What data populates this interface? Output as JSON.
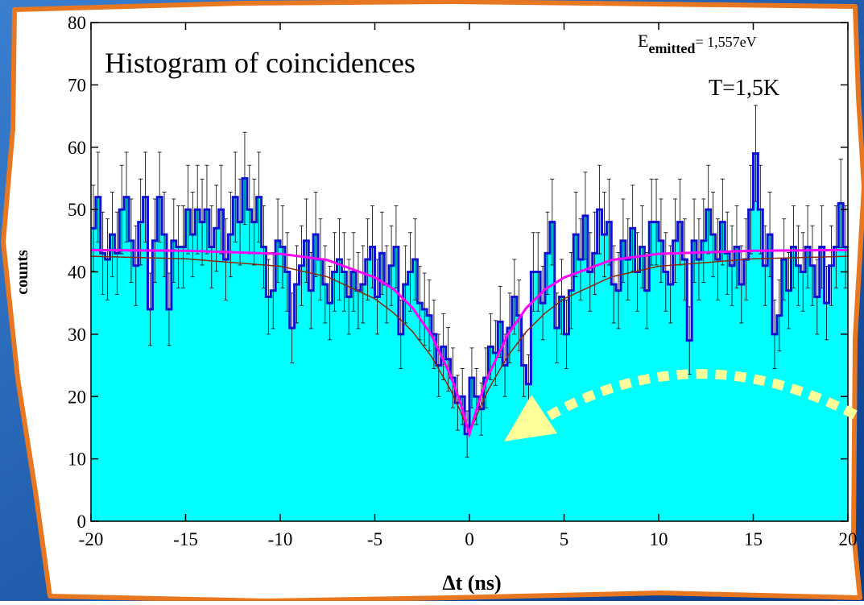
{
  "chart_data": {
    "type": "histogram",
    "title": "Histogram of coincidences",
    "energy_label": {
      "symbol": "E",
      "subscript": "emitted",
      "value": "= 1,557eV"
    },
    "temperature_label": "T=1,5K",
    "xlabel": "Δt (ns)",
    "ylabel": "counts",
    "xlim": [
      -20,
      20
    ],
    "ylim": [
      0,
      80
    ],
    "xticks": [
      -20,
      -15,
      -10,
      -5,
      0,
      5,
      10,
      15,
      20
    ],
    "yticks": [
      0,
      10,
      20,
      30,
      40,
      50,
      60,
      70,
      80
    ],
    "fill_color": "#00ffff",
    "edge_color": "#1010d0",
    "bins": [
      -20,
      -19.75,
      -19.5,
      -19.25,
      -19,
      -18.75,
      -18.5,
      -18.25,
      -18,
      -17.75,
      -17.5,
      -17.25,
      -17,
      -16.75,
      -16.5,
      -16.25,
      -16,
      -15.75,
      -15.5,
      -15.25,
      -15,
      -14.75,
      -14.5,
      -14.25,
      -14,
      -13.75,
      -13.5,
      -13.25,
      -13,
      -12.75,
      -12.5,
      -12.25,
      -12,
      -11.75,
      -11.5,
      -11.25,
      -11,
      -10.75,
      -10.5,
      -10.25,
      -10,
      -9.75,
      -9.5,
      -9.25,
      -9,
      -8.75,
      -8.5,
      -8.25,
      -8,
      -7.75,
      -7.5,
      -7.25,
      -7,
      -6.75,
      -6.5,
      -6.25,
      -6,
      -5.75,
      -5.5,
      -5.25,
      -5,
      -4.75,
      -4.5,
      -4.25,
      -4,
      -3.75,
      -3.5,
      -3.25,
      -3,
      -2.75,
      -2.5,
      -2.25,
      -2,
      -1.75,
      -1.5,
      -1.25,
      -1,
      -0.75,
      -0.5,
      -0.25,
      0,
      0.25,
      0.5,
      0.75,
      1,
      1.25,
      1.5,
      1.75,
      2,
      2.25,
      2.5,
      2.75,
      3,
      3.25,
      3.5,
      3.75,
      4,
      4.25,
      4.5,
      4.75,
      5,
      5.25,
      5.5,
      5.75,
      6,
      6.25,
      6.5,
      6.75,
      7,
      7.25,
      7.5,
      7.75,
      8,
      8.25,
      8.5,
      8.75,
      9,
      9.25,
      9.5,
      9.75,
      10,
      10.25,
      10.5,
      10.75,
      11,
      11.25,
      11.5,
      11.75,
      12,
      12.25,
      12.5,
      12.75,
      13,
      13.25,
      13.5,
      13.75,
      14,
      14.25,
      14.5,
      14.75,
      15,
      15.25,
      15.5,
      15.75,
      16,
      16.25,
      16.5,
      16.75,
      17,
      17.25,
      17.5,
      17.75,
      18,
      18.25,
      18.5,
      18.75,
      19,
      19.25,
      19.5,
      19.75,
      20
    ],
    "values": [
      47,
      52,
      43,
      42,
      46,
      43,
      50,
      52,
      45,
      41,
      48,
      52,
      34,
      45,
      52,
      46,
      34,
      45,
      44,
      44,
      50,
      46,
      50,
      48,
      50,
      44,
      47,
      50,
      42,
      46,
      52,
      48,
      55,
      50,
      48,
      52,
      44,
      36,
      37,
      45,
      44,
      40,
      31,
      38,
      41,
      45,
      37,
      46,
      42,
      38,
      35,
      40,
      42,
      40,
      36,
      40,
      37,
      38,
      42,
      44,
      36,
      43,
      38,
      41,
      44,
      30,
      38,
      40,
      42,
      35,
      34,
      33,
      30,
      25,
      28,
      26,
      23,
      19,
      20,
      14,
      23,
      20,
      18,
      23,
      28,
      27,
      32,
      25,
      31,
      36,
      33,
      25,
      22,
      40,
      40,
      35,
      43,
      48,
      31,
      36,
      30,
      37,
      46,
      42,
      49,
      40,
      43,
      50,
      46,
      48,
      38,
      37,
      45,
      42,
      47,
      40,
      44,
      37,
      48,
      48,
      45,
      40,
      38,
      45,
      48,
      42,
      29,
      45,
      42,
      45,
      50,
      46,
      42,
      48,
      43,
      41,
      44,
      38,
      42,
      50,
      59,
      50,
      41,
      46,
      30,
      33,
      42,
      37,
      44,
      41,
      40,
      44,
      41,
      36,
      44,
      35,
      41,
      44,
      51,
      44
    ],
    "errors": [
      6.9,
      7.2,
      6.6,
      6.5,
      6.8,
      6.6,
      7.1,
      7.2,
      6.7,
      6.4,
      6.9,
      7.2,
      5.8,
      6.7,
      7.2,
      6.8,
      5.8,
      6.7,
      6.6,
      6.6,
      7.1,
      6.8,
      7.1,
      6.9,
      7.1,
      6.6,
      6.9,
      7.1,
      6.5,
      6.8,
      7.2,
      6.9,
      7.4,
      7.1,
      6.9,
      7.2,
      6.6,
      6,
      6.1,
      6.7,
      6.6,
      6.3,
      5.6,
      6.2,
      6.4,
      6.7,
      6.1,
      6.8,
      6.5,
      6.2,
      5.9,
      6.3,
      6.5,
      6.3,
      6,
      6.3,
      6.1,
      6.2,
      6.5,
      6.6,
      6,
      6.6,
      6.2,
      6.4,
      6.6,
      5.5,
      6.2,
      6.3,
      6.5,
      5.9,
      5.8,
      5.7,
      5.5,
      5,
      5.3,
      5.1,
      4.8,
      4.4,
      4.5,
      3.7,
      4.8,
      4.5,
      4.2,
      4.8,
      5.3,
      5.2,
      5.7,
      5,
      5.6,
      6,
      5.7,
      5,
      4.7,
      6.3,
      6.3,
      5.9,
      6.6,
      6.9,
      5.6,
      6,
      5.5,
      6.1,
      6.8,
      6.5,
      7,
      6.3,
      6.6,
      7.1,
      6.8,
      6.9,
      6.2,
      6.1,
      6.7,
      6.5,
      6.9,
      6.3,
      6.6,
      6.1,
      6.9,
      6.9,
      6.7,
      6.3,
      6.2,
      6.7,
      6.9,
      6.5,
      5.4,
      6.7,
      6.5,
      6.7,
      7.1,
      6.8,
      6.5,
      6.9,
      6.6,
      6.4,
      6.6,
      6.2,
      6.5,
      7.1,
      7.7,
      7.1,
      6.4,
      6.8,
      5.5,
      5.7,
      6.5,
      6.1,
      6.6,
      6.4,
      6.3,
      6.6,
      6.4,
      6,
      6.6,
      5.9,
      6.4,
      6.6,
      7.1,
      6.6
    ],
    "fit_curves": [
      {
        "color": "#8b2a10",
        "x": [
          -20,
          -15,
          -10,
          -7.5,
          -5,
          -4,
          -3,
          -2,
          -1,
          -0.5,
          0,
          0.5,
          1,
          2,
          3,
          4,
          5,
          7.5,
          10,
          15,
          20
        ],
        "y": [
          42.5,
          42.1,
          40.9,
          39.2,
          35.7,
          33.4,
          30.4,
          26.4,
          21.1,
          17.8,
          14,
          17.8,
          21.1,
          26.4,
          30.4,
          33.4,
          35.7,
          39.2,
          40.9,
          42.1,
          42.5
        ]
      },
      {
        "color": "#ff00ff",
        "x": [
          -20,
          -15,
          -10,
          -7.5,
          -5,
          -4,
          -3,
          -2,
          -1,
          -0.5,
          0,
          0.5,
          1,
          2,
          3,
          4,
          5,
          7.5,
          10,
          15,
          20
        ],
        "y": [
          43.5,
          43.4,
          42.9,
          41.9,
          39.1,
          37.2,
          34.2,
          29.8,
          23.4,
          19.2,
          14,
          19.2,
          23.4,
          29.8,
          34.2,
          37.2,
          39.1,
          41.9,
          42.9,
          43.4,
          43.5
        ]
      }
    ]
  }
}
